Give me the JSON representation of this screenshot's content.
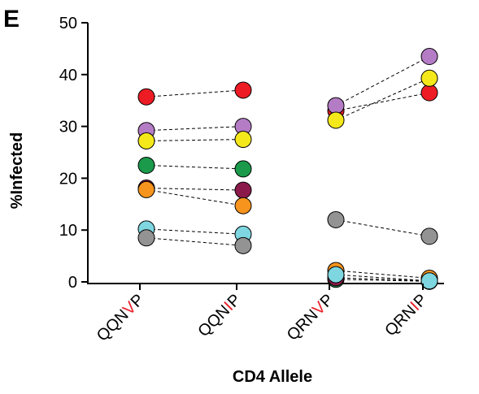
{
  "chart_data": {
    "type": "scatter",
    "panel_label": "E",
    "ylabel": "%Infected",
    "xlabel": "CD4 Allele",
    "ylim": [
      0,
      50
    ],
    "yticks": [
      0,
      10,
      20,
      30,
      40,
      50
    ],
    "categories": [
      {
        "prefix": "QQN",
        "residue": "V",
        "suffix": "P"
      },
      {
        "prefix": "QQN",
        "residue": "I",
        "suffix": "P"
      },
      {
        "prefix": "QRN",
        "residue": "V",
        "suffix": "P"
      },
      {
        "prefix": "QRN",
        "residue": "I",
        "suffix": "P"
      }
    ],
    "highlight_color": "#e8202a",
    "pairs": [
      {
        "color": "#ed1c24",
        "from_cat": 0,
        "from_y": 35.7,
        "to_cat": 1,
        "to_y": 37.0
      },
      {
        "color": "#b57cc6",
        "from_cat": 0,
        "from_y": 29.2,
        "to_cat": 1,
        "to_y": 30.0
      },
      {
        "color": "#f5e81a",
        "from_cat": 0,
        "from_y": 27.2,
        "to_cat": 1,
        "to_y": 27.5
      },
      {
        "color": "#1a9a4a",
        "from_cat": 0,
        "from_y": 22.5,
        "to_cat": 1,
        "to_y": 21.8
      },
      {
        "color": "#8b1a4a",
        "from_cat": 0,
        "from_y": 18.1,
        "to_cat": 1,
        "to_y": 17.7
      },
      {
        "color": "#f7941d",
        "from_cat": 0,
        "from_y": 17.8,
        "to_cat": 1,
        "to_y": 14.7
      },
      {
        "color": "#7ed6e0",
        "from_cat": 0,
        "from_y": 10.2,
        "to_cat": 1,
        "to_y": 9.2
      },
      {
        "color": "#939393",
        "from_cat": 0,
        "from_y": 8.5,
        "to_cat": 1,
        "to_y": 7.0
      },
      {
        "color": "#ed1c24",
        "from_cat": 2,
        "from_y": 33.0,
        "to_cat": 3,
        "to_y": 36.5
      },
      {
        "color": "#b57cc6",
        "from_cat": 2,
        "from_y": 34.0,
        "to_cat": 3,
        "to_y": 43.5
      },
      {
        "color": "#f5e81a",
        "from_cat": 2,
        "from_y": 31.2,
        "to_cat": 3,
        "to_y": 39.3
      },
      {
        "color": "#939393",
        "from_cat": 2,
        "from_y": 12.0,
        "to_cat": 3,
        "to_y": 8.8
      },
      {
        "color": "#1a9a4a",
        "from_cat": 2,
        "from_y": 0.5,
        "to_cat": 3,
        "to_y": 0.1
      },
      {
        "color": "#8b1a4a",
        "from_cat": 2,
        "from_y": 0.8,
        "to_cat": 3,
        "to_y": 0.2
      },
      {
        "color": "#f7941d",
        "from_cat": 2,
        "from_y": 2.2,
        "to_cat": 3,
        "to_y": 0.7
      },
      {
        "color": "#7ed6e0",
        "from_cat": 2,
        "from_y": 1.4,
        "to_cat": 3,
        "to_y": 0.2
      }
    ]
  }
}
